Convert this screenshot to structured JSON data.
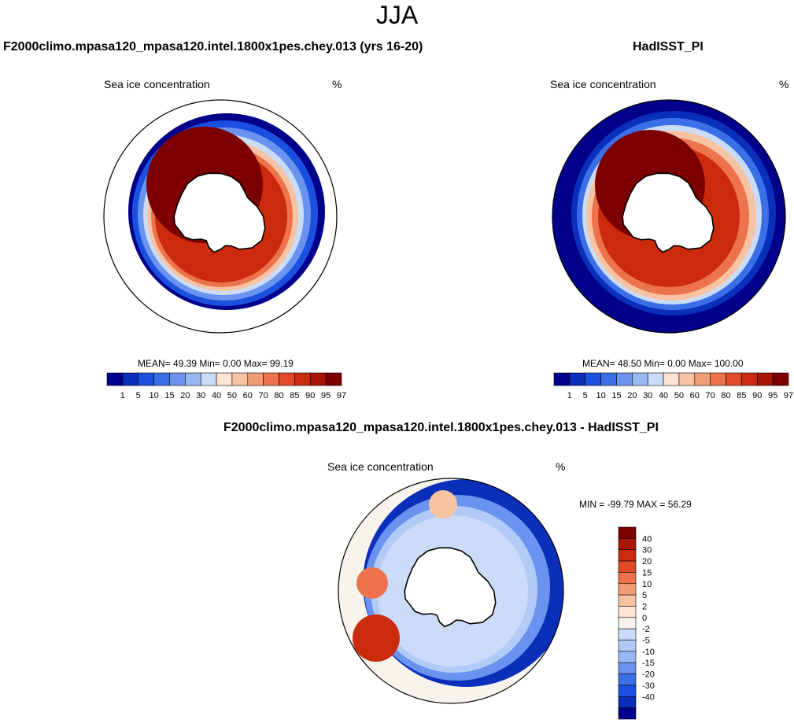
{
  "season": "JJA",
  "colors": {
    "land": "#ffffff",
    "coast": "#000000",
    "abs_scale": [
      "#00008b",
      "#0a2fbb",
      "#1a4fdf",
      "#3b6fe8",
      "#6a93ef",
      "#99b7f3",
      "#cbdcf8",
      "#fde4d3",
      "#f8c3a3",
      "#f29c75",
      "#ec734b",
      "#e14a26",
      "#cb2a0d",
      "#a81505",
      "#7d0000"
    ],
    "diff_scale": [
      "#7d0000",
      "#a81505",
      "#cb2a0d",
      "#e14a26",
      "#ec734b",
      "#f29c75",
      "#f8c3a3",
      "#fde4d3",
      "#f7f4ee",
      "#cbdcf8",
      "#b1caf6",
      "#99b7f3",
      "#6a93ef",
      "#3b6fe8",
      "#1a4fdf",
      "#0a2fbb",
      "#00008b"
    ]
  },
  "chart_data": [
    {
      "type": "heatmap",
      "projection": "south-polar-stereographic",
      "panel_title": "F2000climo.mpasa120_mpasa120.intel.1800x1pes.chey.013 (yrs 16-20)",
      "variable": "Sea ice concentration",
      "units": "%",
      "stats": {
        "mean_label": "MEAN=",
        "mean": "49.39",
        "min_label": "Min=",
        "min": "0.00",
        "max_label": "Max=",
        "max": "99.19"
      },
      "colorbar": {
        "orientation": "horizontal",
        "levels": [
          "1",
          "5",
          "10",
          "15",
          "20",
          "30",
          "40",
          "50",
          "60",
          "70",
          "80",
          "85",
          "90",
          "95",
          "97"
        ]
      },
      "ice_edge_extent": "narrow band, strongest in Weddell and Ross seas"
    },
    {
      "type": "heatmap",
      "projection": "south-polar-stereographic",
      "panel_title": "HadISST_PI",
      "variable": "Sea ice concentration",
      "units": "%",
      "stats": {
        "mean_label": "MEAN=",
        "mean": "48.50",
        "min_label": "Min=",
        "min": "0.00",
        "max_label": "Max=",
        "max": "100.00"
      },
      "colorbar": {
        "orientation": "horizontal",
        "levels": [
          "1",
          "5",
          "10",
          "15",
          "20",
          "30",
          "40",
          "50",
          "60",
          "70",
          "80",
          "85",
          "90",
          "95",
          "97"
        ]
      },
      "ice_edge_extent": "broad pack extending to domain edge"
    },
    {
      "type": "heatmap",
      "projection": "south-polar-stereographic",
      "panel_title": "F2000climo.mpasa120_mpasa120.intel.1800x1pes.chey.013 - HadISST_PI",
      "variable": "Sea ice concentration",
      "units": "%",
      "stats": {
        "min_label": "MIN =",
        "min": "-99.79",
        "max_label": "MAX =",
        "max": "56.29"
      },
      "colorbar": {
        "orientation": "vertical",
        "levels": [
          "40",
          "30",
          "20",
          "15",
          "10",
          "5",
          "2",
          "0",
          "-2",
          "-5",
          "-10",
          "-15",
          "-20",
          "-30",
          "-40"
        ]
      }
    }
  ]
}
